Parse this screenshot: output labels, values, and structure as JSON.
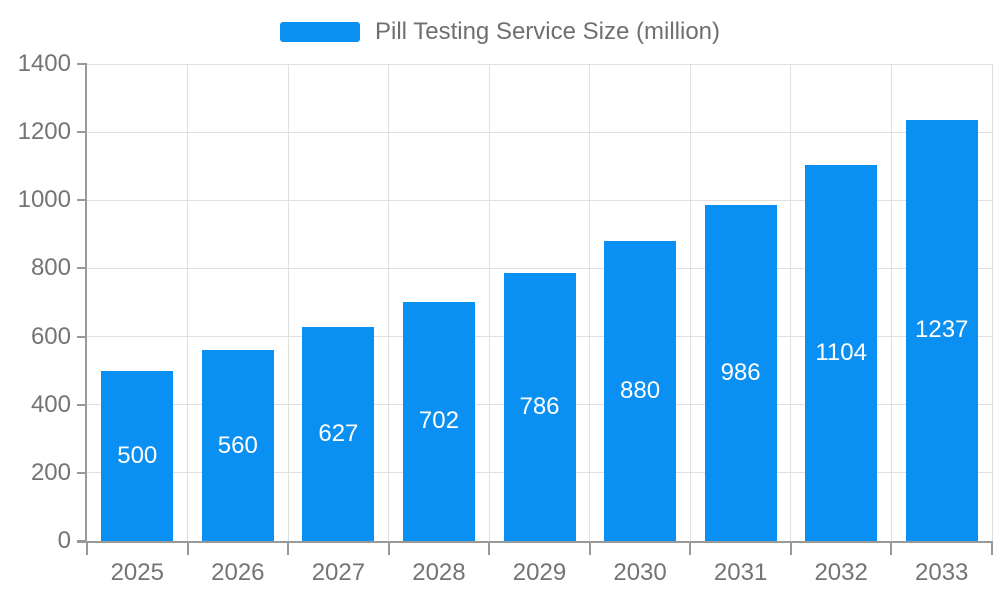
{
  "chart_data": {
    "type": "bar",
    "title": "Pill Testing Service Size (million)",
    "categories": [
      "2025",
      "2026",
      "2027",
      "2028",
      "2029",
      "2030",
      "2031",
      "2032",
      "2033"
    ],
    "values": [
      500,
      560,
      627,
      702,
      786,
      880,
      986,
      1104,
      1237
    ],
    "xlabel": "",
    "ylabel": "",
    "ylim": [
      0,
      1400
    ],
    "ytick_interval": 200,
    "ytick_labels": [
      "0",
      "200",
      "400",
      "600",
      "800",
      "1000",
      "1200",
      "1400"
    ],
    "grid": true,
    "legend_position": "top-center",
    "bar_label_position": "inside-center",
    "colors": {
      "bar": "#0a8ff2",
      "bar_label": "#ffffff",
      "axis_text": "#747474",
      "legend_text": "#6f6f6f",
      "grid_line": "#e0e0e0",
      "axis_line": "#999999",
      "background": "#ffffff"
    }
  }
}
